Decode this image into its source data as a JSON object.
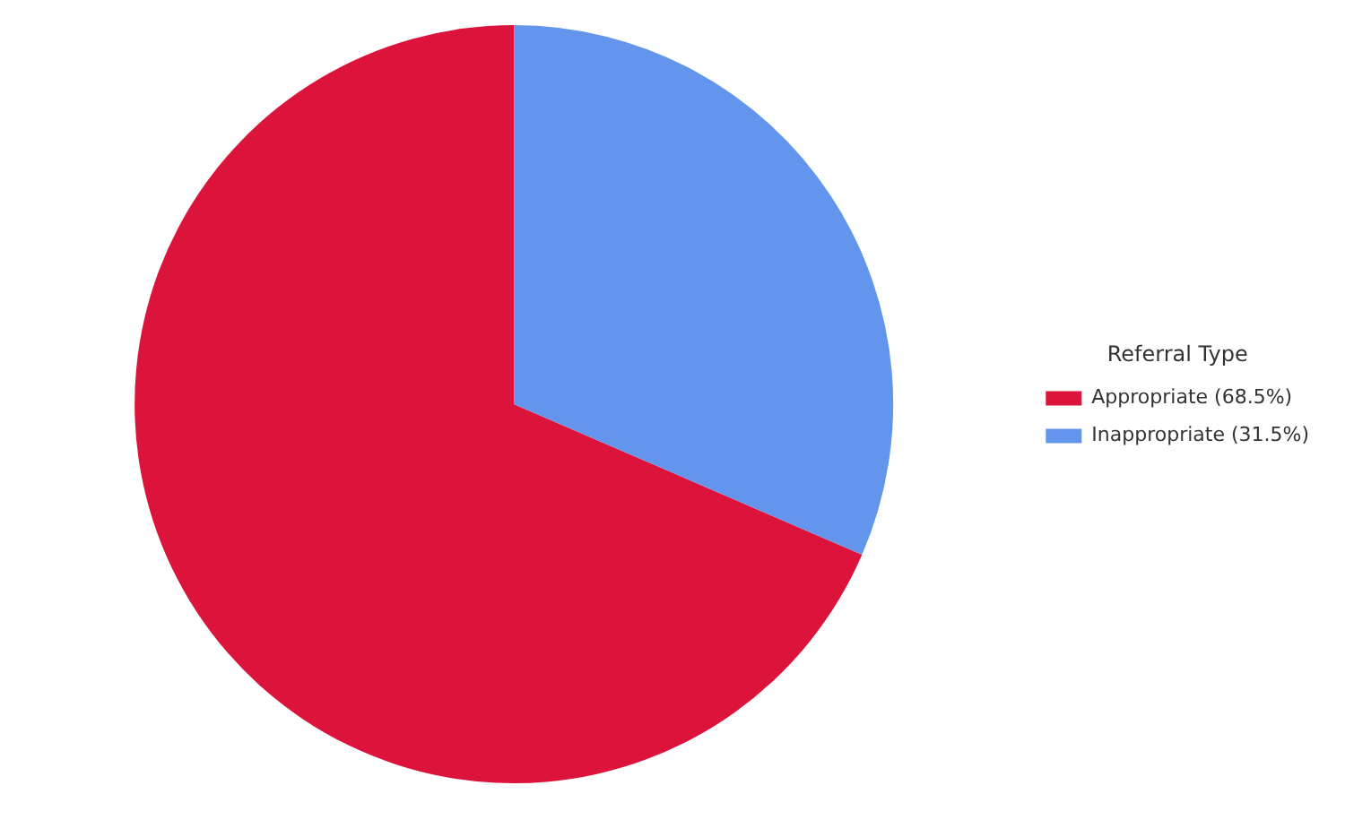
{
  "chart_data": {
    "type": "pie",
    "legend_title": "Referral Type",
    "legend": "right",
    "categories": [
      "Appropriate (68.5%)",
      "Inappropriate (31.5%)"
    ],
    "values": [
      68.5,
      31.5
    ],
    "colors": [
      "#dc143c",
      "#6495ed"
    ]
  }
}
